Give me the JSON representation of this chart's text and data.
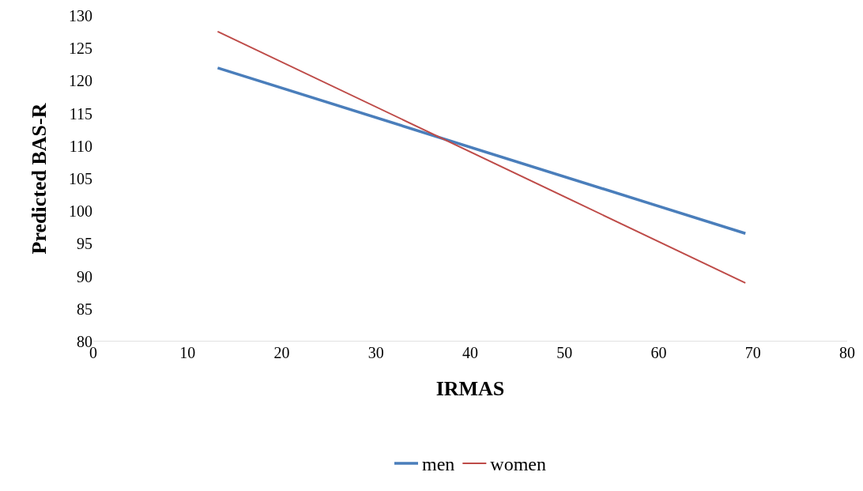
{
  "chart_data": {
    "type": "line",
    "xlabel": "IRMAS",
    "ylabel": "Predicted BAS-R",
    "x": [
      13.2,
      69.2
    ],
    "series": [
      {
        "name": "men",
        "color": "#4a7ebb",
        "values": [
          122,
          96.6
        ]
      },
      {
        "name": "women",
        "color": "#be4b48",
        "values": [
          127.6,
          89
        ]
      }
    ],
    "xlim": [
      0,
      80
    ],
    "xticks": [
      0,
      10,
      20,
      30,
      40,
      50,
      60,
      70,
      80
    ],
    "ylim": [
      80,
      130
    ],
    "yticks": [
      80,
      85,
      90,
      95,
      100,
      105,
      110,
      115,
      120,
      125,
      130
    ],
    "grid": false,
    "legend": "bottom",
    "marker": "none",
    "line_style": "solid"
  }
}
